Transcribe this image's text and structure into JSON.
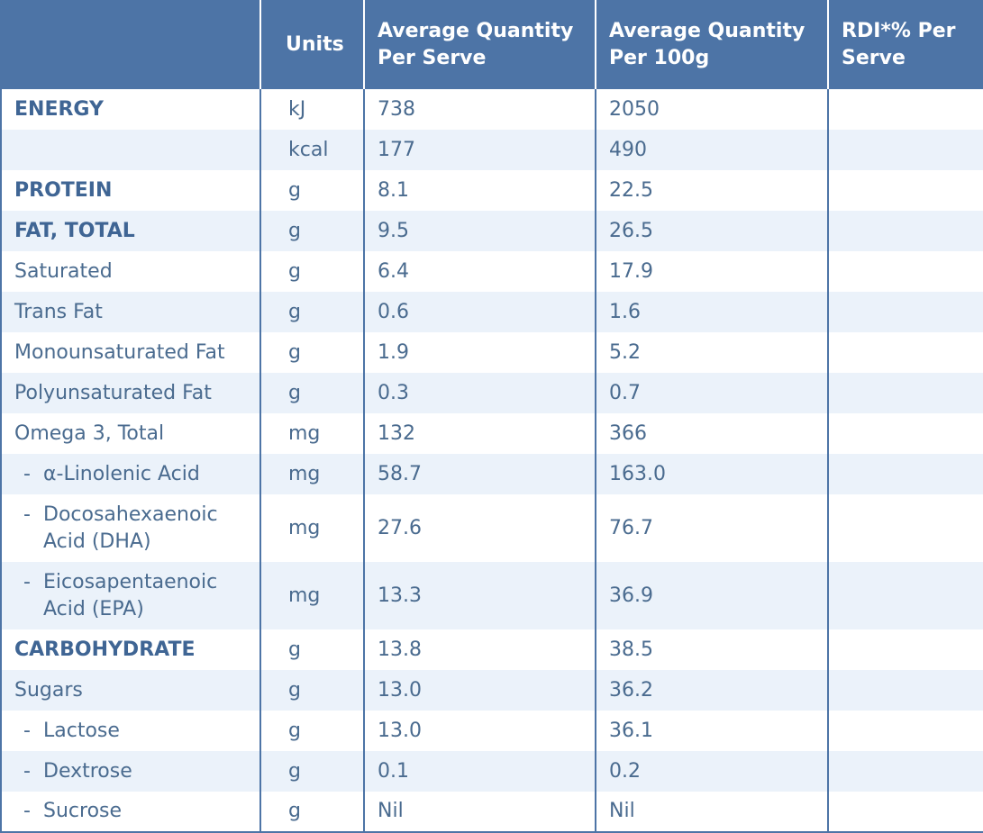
{
  "header": {
    "col_name": "",
    "col_units": "Units",
    "col_per_serve": "Average Quantity Per Serve",
    "col_per_100g": "Average Quantity Per 100g",
    "col_rdi": "RDI*% Per Serve"
  },
  "rows": [
    {
      "name": "ENERGY",
      "unit": "kJ",
      "per_serve": "738",
      "per_100g": "2050",
      "rdi": ""
    },
    {
      "name": "",
      "unit": "kcal",
      "per_serve": "177",
      "per_100g": "490",
      "rdi": ""
    },
    {
      "name": "PROTEIN",
      "unit": "g",
      "per_serve": "8.1",
      "per_100g": "22.5",
      "rdi": ""
    },
    {
      "name": "FAT, TOTAL",
      "unit": "g",
      "per_serve": "9.5",
      "per_100g": "26.5",
      "rdi": ""
    },
    {
      "name": "Saturated",
      "unit": "g",
      "per_serve": "6.4",
      "per_100g": "17.9",
      "rdi": ""
    },
    {
      "name": "Trans Fat",
      "unit": "g",
      "per_serve": "0.6",
      "per_100g": "1.6",
      "rdi": ""
    },
    {
      "name": "Monounsaturated Fat",
      "unit": "g",
      "per_serve": "1.9",
      "per_100g": "5.2",
      "rdi": ""
    },
    {
      "name": "Polyunsaturated Fat",
      "unit": "g",
      "per_serve": "0.3",
      "per_100g": "0.7",
      "rdi": ""
    },
    {
      "name": "Omega 3, Total",
      "unit": "mg",
      "per_serve": "132",
      "per_100g": "366",
      "rdi": ""
    },
    {
      "name": "α-Linolenic Acid",
      "unit": "mg",
      "per_serve": "58.7",
      "per_100g": "163.0",
      "rdi": ""
    },
    {
      "name": "Docosahexaenoic Acid (DHA)",
      "unit": "mg",
      "per_serve": "27.6",
      "per_100g": "76.7",
      "rdi": ""
    },
    {
      "name": "Eicosapentaenoic Acid (EPA)",
      "unit": "mg",
      "per_serve": "13.3",
      "per_100g": "36.9",
      "rdi": ""
    },
    {
      "name": "CARBOHYDRATE",
      "unit": "g",
      "per_serve": "13.8",
      "per_100g": "38.5",
      "rdi": ""
    },
    {
      "name": "Sugars",
      "unit": "g",
      "per_serve": "13.0",
      "per_100g": "36.2",
      "rdi": ""
    },
    {
      "name": "Lactose",
      "unit": "g",
      "per_serve": "13.0",
      "per_100g": "36.1",
      "rdi": ""
    },
    {
      "name": "Dextrose",
      "unit": "g",
      "per_serve": "0.1",
      "per_100g": "0.2",
      "rdi": ""
    },
    {
      "name": "Sucrose",
      "unit": "g",
      "per_serve": "Nil",
      "per_100g": "Nil",
      "rdi": ""
    }
  ],
  "colors": {
    "header_bg": "#4d74a6",
    "header_text": "#ffffff",
    "body_text": "#4a6b8f",
    "stripe_bg": "#ebf2fa"
  }
}
